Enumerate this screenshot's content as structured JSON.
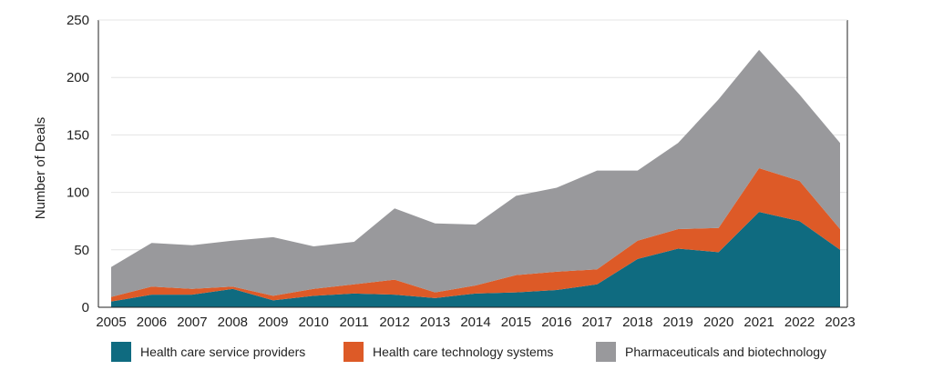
{
  "chart_data": {
    "type": "area",
    "stacked": true,
    "title": "",
    "xlabel": "",
    "ylabel": "Number of Deals",
    "ylim": [
      0,
      250
    ],
    "yticks": [
      0,
      50,
      100,
      150,
      200,
      250
    ],
    "grid": true,
    "legend_position": "bottom",
    "x": [
      "2005",
      "2006",
      "2007",
      "2008",
      "2009",
      "2010",
      "2011",
      "2012",
      "2013",
      "2014",
      "2015",
      "2016",
      "2017",
      "2018",
      "2019",
      "2020",
      "2021",
      "2022",
      "2023"
    ],
    "series": [
      {
        "name": "Health care service providers",
        "color": "#0f6b80",
        "values": [
          5,
          11,
          11,
          16,
          6,
          10,
          12,
          11,
          8,
          12,
          13,
          15,
          20,
          42,
          51,
          48,
          83,
          75,
          50
        ]
      },
      {
        "name": "Health care technology systems",
        "color": "#dd5a27",
        "values": [
          4,
          7,
          5,
          2,
          4,
          6,
          8,
          13,
          5,
          7,
          15,
          16,
          13,
          16,
          17,
          21,
          38,
          35,
          18
        ]
      },
      {
        "name": "Pharmaceuticals and biotechnology",
        "color": "#99999c",
        "values": [
          26,
          38,
          38,
          40,
          51,
          37,
          37,
          62,
          60,
          53,
          69,
          73,
          86,
          61,
          75,
          112,
          103,
          75,
          75
        ]
      }
    ]
  }
}
